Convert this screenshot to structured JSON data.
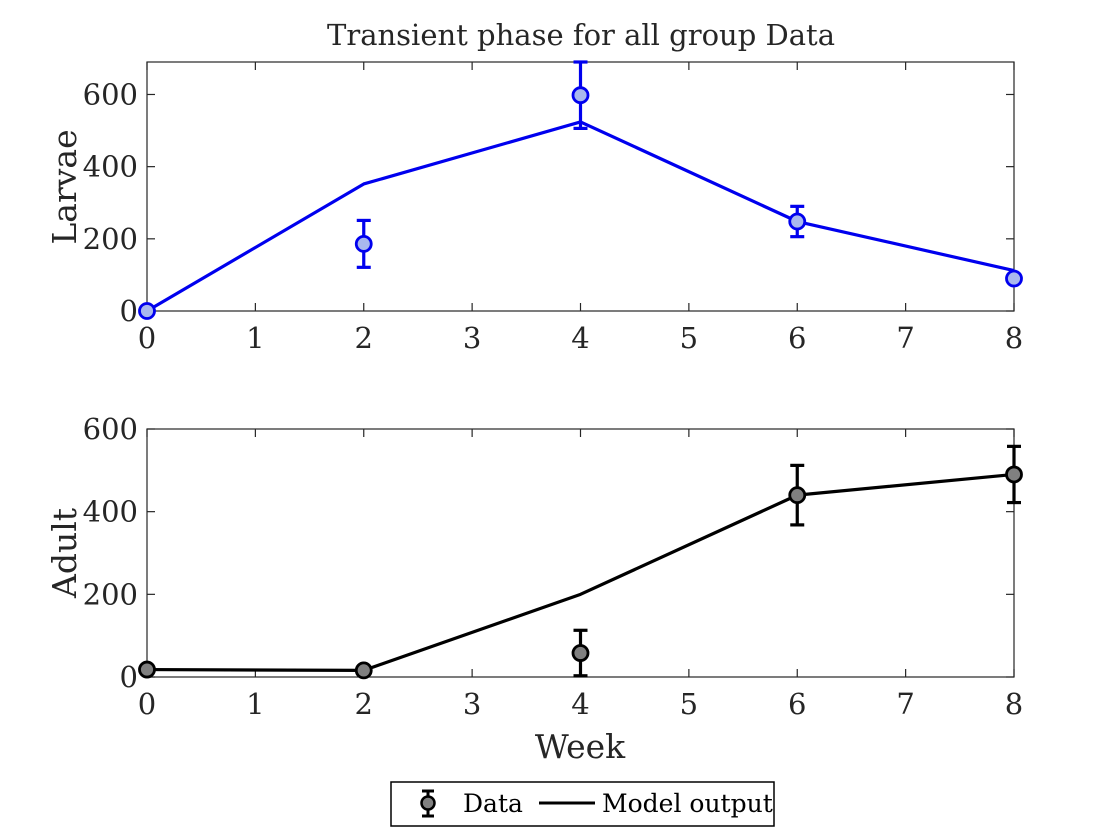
{
  "chart_data": [
    {
      "type": "line",
      "title": "Transient phase for all group Data",
      "xlabel": "",
      "ylabel": "Larvae",
      "xlim": [
        0,
        8
      ],
      "ylim": [
        0,
        690
      ],
      "xticks": [
        0,
        1,
        2,
        3,
        4,
        5,
        6,
        7,
        8
      ],
      "yticks": [
        0,
        200,
        400,
        600
      ],
      "grid": false,
      "colors": {
        "line": "#0000ee",
        "marker_fill": "#a9b8ee",
        "marker_edge": "#0000ee"
      },
      "series": [
        {
          "name": "Model output",
          "kind": "line",
          "x": [
            0,
            2,
            4,
            6,
            8
          ],
          "y": [
            0,
            352,
            524,
            248,
            112
          ]
        },
        {
          "name": "Data",
          "kind": "errorbar",
          "x": [
            0,
            2,
            4,
            6,
            8
          ],
          "y": [
            0,
            186,
            598,
            248,
            90
          ],
          "err": [
            0,
            65,
            92,
            42,
            10
          ]
        }
      ]
    },
    {
      "type": "line",
      "title": "",
      "xlabel": "Week",
      "ylabel": "Adult",
      "xlim": [
        0,
        8
      ],
      "ylim": [
        0,
        600
      ],
      "xticks": [
        0,
        1,
        2,
        3,
        4,
        5,
        6,
        7,
        8
      ],
      "yticks": [
        0,
        200,
        400,
        600
      ],
      "grid": false,
      "colors": {
        "line": "#000000",
        "marker_fill": "#808080",
        "marker_edge": "#000000"
      },
      "series": [
        {
          "name": "Model output",
          "kind": "line",
          "x": [
            0,
            2,
            4,
            6,
            8
          ],
          "y": [
            18,
            16,
            200,
            440,
            490
          ]
        },
        {
          "name": "Data",
          "kind": "errorbar",
          "x": [
            0,
            2,
            4,
            6,
            8
          ],
          "y": [
            18,
            16,
            58,
            440,
            490
          ],
          "err": [
            5,
            5,
            55,
            72,
            68
          ]
        }
      ]
    }
  ],
  "legend": {
    "placement": "bottom-center",
    "entries": [
      {
        "label": "Data",
        "icon": "errorbar-marker-icon"
      },
      {
        "label": "Model output",
        "icon": "line-icon"
      }
    ]
  }
}
